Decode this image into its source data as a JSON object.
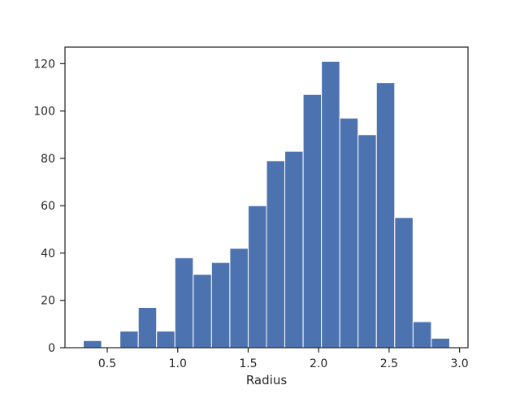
{
  "chart_data": {
    "type": "bar",
    "histogram": true,
    "xlabel": "Radius",
    "ylabel": "",
    "title": "",
    "xlim": [
      0.2,
      3.06
    ],
    "ylim": [
      0,
      127
    ],
    "xticks": [
      0.5,
      1.0,
      1.5,
      2.0,
      2.5,
      3.0
    ],
    "xtick_labels": [
      "0.5",
      "1.0",
      "1.5",
      "2.0",
      "2.5",
      "3.0"
    ],
    "yticks": [
      0,
      20,
      40,
      60,
      80,
      100,
      120
    ],
    "ytick_labels": [
      "0",
      "20",
      "40",
      "60",
      "80",
      "100",
      "120"
    ],
    "bin_edges": [
      0.33,
      0.46,
      0.59,
      0.72,
      0.85,
      0.98,
      1.11,
      1.24,
      1.37,
      1.5,
      1.63,
      1.76,
      1.89,
      2.02,
      2.15,
      2.28,
      2.41,
      2.54,
      2.67,
      2.8,
      2.93
    ],
    "values": [
      3,
      0,
      7,
      17,
      7,
      38,
      31,
      36,
      42,
      60,
      79,
      83,
      107,
      121,
      97,
      90,
      112,
      55,
      11,
      4
    ],
    "bar_color": "#4c72b0",
    "bar_edge_color": "#ffffff",
    "grid": false,
    "legend": "none"
  }
}
